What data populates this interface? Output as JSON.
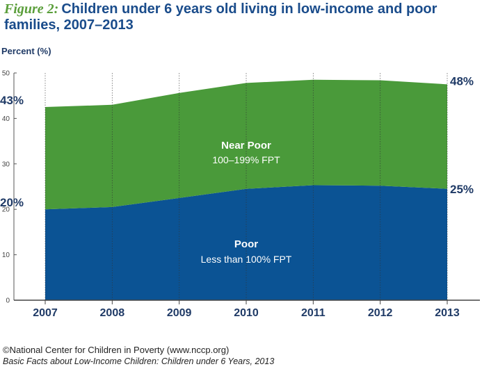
{
  "figure": {
    "label": "Figure 2:",
    "title": "Children under 6 years old living in low-income and poor families, 2007–2013"
  },
  "chart_data": {
    "type": "area",
    "stacked": true,
    "x": [
      "2007",
      "2008",
      "2009",
      "2010",
      "2011",
      "2012",
      "2013"
    ],
    "series": [
      {
        "name": "Poor",
        "sublabel": "Less than 100% FPT",
        "color": "#0b5394",
        "values": [
          20,
          20.5,
          22.5,
          24.5,
          25.3,
          25.2,
          24.5
        ]
      },
      {
        "name": "Near Poor",
        "sublabel": "100–199% FPT",
        "color": "#4a9a3a",
        "values": [
          22.5,
          22.5,
          23.1,
          23.3,
          23.2,
          23.2,
          23
        ]
      }
    ],
    "ylabel": "Percent (%)",
    "ylim": [
      0,
      50
    ],
    "yticks": [
      0,
      10,
      20,
      30,
      40,
      50
    ],
    "annotations": {
      "near_poor_2007": "43%",
      "poor_2007": "20%",
      "near_poor_2013": "48%",
      "poor_2013": "25%"
    },
    "grid": "vertical-dotted"
  },
  "footer": {
    "source": "©National Center for Children in Poverty (www.nccp.org)",
    "citation": "Basic Facts about Low-Income Children: Children under 6 Years, 2013"
  }
}
